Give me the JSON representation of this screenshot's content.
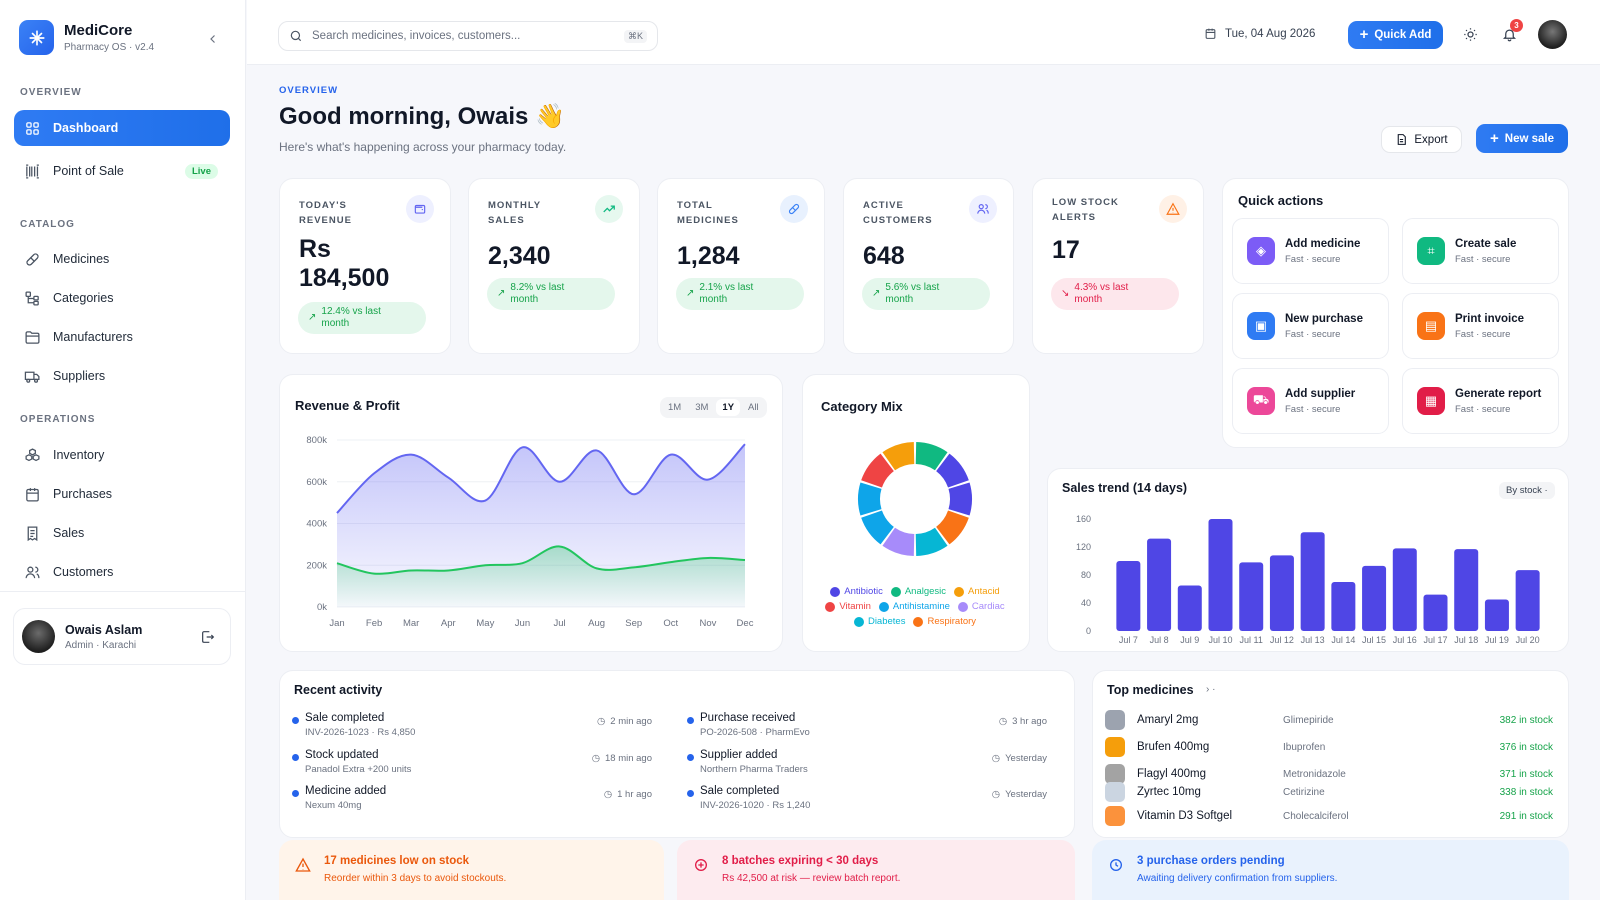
{
  "app": {
    "name": "MediCore",
    "subtitle": "Pharmacy OS · v2.4"
  },
  "sidebar": {
    "sections": {
      "overview": "OVERVIEW",
      "catalog": "CATALOG",
      "operations": "OPERATIONS"
    },
    "items": [
      {
        "label": "Dashboard",
        "icon": "grid-icon"
      },
      {
        "label": "Point of Sale",
        "icon": "barcode-icon",
        "badge": "Live"
      },
      {
        "label": "Medicines",
        "icon": "pill-icon"
      },
      {
        "label": "Categories",
        "icon": "tree-icon"
      },
      {
        "label": "Manufacturers",
        "icon": "folder-icon"
      },
      {
        "label": "Suppliers",
        "icon": "truck-icon"
      },
      {
        "label": "Inventory",
        "icon": "boxes-icon"
      },
      {
        "label": "Purchases",
        "icon": "calendar-box-icon"
      },
      {
        "label": "Sales",
        "icon": "receipt-icon"
      },
      {
        "label": "Customers",
        "icon": "users-icon"
      }
    ],
    "user": {
      "name": "Owais Aslam",
      "role": "Admin · Karachi"
    }
  },
  "topbar": {
    "search_placeholder": "Search medicines, invoices, customers...",
    "shortcut": "⌘K",
    "date": "Tue, 04 Aug 2026",
    "quick_add": "Quick Add",
    "notifications": "3"
  },
  "header": {
    "eyebrow": "OVERVIEW",
    "greeting": "Good morning, Owais 👋",
    "subtitle": "Here's what's happening across your pharmacy today.",
    "export": "Export",
    "new_sale": "New sale"
  },
  "stats": [
    {
      "label": "TODAY'S REVENUE",
      "value_line1": "Rs",
      "value_line2": "184,500",
      "change": "12.4% vs last month",
      "trend": "up",
      "icon": "wallet-icon",
      "color": "#6366f1"
    },
    {
      "label": "MONTHLY SALES",
      "value": "2,340",
      "change": "8.2% vs last month",
      "trend": "up",
      "icon": "trend-up-icon",
      "color": "#10b981"
    },
    {
      "label": "TOTAL MEDICINES",
      "value": "1,284",
      "change": "2.1% vs last month",
      "trend": "up",
      "icon": "pill-icon",
      "color": "#3b82f6"
    },
    {
      "label": "ACTIVE CUSTOMERS",
      "value": "648",
      "change": "5.6% vs last month",
      "trend": "up",
      "icon": "users-icon",
      "color": "#6366f1"
    },
    {
      "label": "LOW STOCK ALERTS",
      "value": "17",
      "change": "4.3% vs last month",
      "trend": "down",
      "icon": "warning-icon",
      "color": "#f97316"
    }
  ],
  "quick_actions": {
    "title": "Quick actions",
    "sub": "Fast · secure",
    "items": [
      {
        "label": "Add medicine",
        "color": "#7c5cf6",
        "icon": "pill-icon"
      },
      {
        "label": "Create sale",
        "color": "#10b981",
        "icon": "scan-icon"
      },
      {
        "label": "New purchase",
        "color": "#2f7bf3",
        "icon": "box-icon"
      },
      {
        "label": "Print invoice",
        "color": "#f97316",
        "icon": "document-icon"
      },
      {
        "label": "Add supplier",
        "color": "#ec4899",
        "icon": "truck-icon"
      },
      {
        "label": "Generate report",
        "color": "#e11d48",
        "icon": "chart-icon"
      }
    ]
  },
  "revenue_chart": {
    "title": "Revenue & Profit",
    "ranges": [
      "1M",
      "3M",
      "1Y",
      "All"
    ],
    "active_range": "1Y"
  },
  "category_mix": {
    "title": "Category Mix"
  },
  "sales_trend": {
    "title": "Sales trend (14 days)",
    "filter": "By stock ·"
  },
  "chart_data": [
    {
      "type": "area",
      "title": "Revenue & Profit",
      "categories": [
        "Jan",
        "Feb",
        "Mar",
        "Apr",
        "May",
        "Jun",
        "Jul",
        "Aug",
        "Sep",
        "Oct",
        "Nov",
        "Dec"
      ],
      "ylim": [
        0,
        800000
      ],
      "yticks": [
        "800k",
        "600k",
        "400k",
        "200k",
        "0k"
      ],
      "series": [
        {
          "values": [
            450000,
            640000,
            730000,
            620000,
            510000,
            765000,
            600000,
            750000,
            540000,
            730000,
            610000,
            780000
          ],
          "color": "#6366f1"
        },
        {
          "values": [
            210000,
            160000,
            175000,
            175000,
            200000,
            210000,
            290000,
            185000,
            190000,
            215000,
            235000,
            225000
          ],
          "color": "#22c55e"
        }
      ]
    },
    {
      "type": "pie",
      "title": "Category Mix",
      "categories": [
        "Antibiotic",
        "Analgesic",
        "Antacid",
        "Vitamin",
        "Antihistamine",
        "Cardiac",
        "Diabetes",
        "Respiratory"
      ],
      "values": [
        16,
        10,
        14,
        13,
        14,
        12,
        11,
        10
      ],
      "colors": [
        "#4f46e5",
        "#10b981",
        "#f59e0b",
        "#ef4444",
        "#0ea5e9",
        "#a78bfa",
        "#06b6d4",
        "#f97316"
      ],
      "segment_colors": [
        "#10b981",
        "#4f46e5",
        "#4f46e5",
        "#f97316",
        "#06b6d4",
        "#a78bfa",
        "#0ea5e9",
        "#0ea5e9",
        "#ef4444",
        "#f59e0b"
      ]
    },
    {
      "type": "bar",
      "title": "Sales trend (14 days)",
      "categories": [
        "Jul 7",
        "Jul 8",
        "Jul 9",
        "Jul 10",
        "Jul 11",
        "Jul 12",
        "Jul 13",
        "Jul 14",
        "Jul 15",
        "Jul 16",
        "Jul 17",
        "Jul 18",
        "Jul 19",
        "Jul 20"
      ],
      "values": [
        100,
        132,
        65,
        160,
        98,
        108,
        141,
        70,
        93,
        118,
        52,
        117,
        45,
        87
      ],
      "ylim": [
        0,
        160
      ],
      "yticks": [
        0,
        40,
        80,
        120,
        160
      ],
      "color": "#4f46e5"
    }
  ],
  "activity": {
    "title": "Recent activity",
    "items": [
      {
        "title": "Sale completed",
        "sub": "INV-2026-1023 · Rs 4,850",
        "time": "2 min ago"
      },
      {
        "title": "Stock updated",
        "sub": "Panadol Extra +200 units",
        "time": "18 min ago"
      },
      {
        "title": "Medicine added",
        "sub": "Nexum 40mg",
        "time": "1 hr ago"
      },
      {
        "title": "Purchase received",
        "sub": "PO-2026-508 · PharmEvo",
        "time": "3 hr ago"
      },
      {
        "title": "Supplier added",
        "sub": "Northern Pharma Traders",
        "time": "Yesterday"
      },
      {
        "title": "Sale completed",
        "sub": "INV-2026-1020 · Rs 1,240",
        "time": "Yesterday"
      }
    ]
  },
  "top_medicines": {
    "title": "Top medicines",
    "items": [
      {
        "name": "Amaryl 2mg",
        "generic": "Glimepiride",
        "stock": "382 in stock",
        "thumb": "#9ca3af"
      },
      {
        "name": "Brufen 400mg",
        "generic": "Ibuprofen",
        "stock": "376 in stock",
        "thumb": "#f59e0b"
      },
      {
        "name": "Flagyl 400mg",
        "generic": "Metronidazole",
        "stock": "371 in stock",
        "thumb": "#a3a3a3"
      },
      {
        "name": "Zyrtec 10mg",
        "generic": "Cetirizine",
        "stock": "338 in stock",
        "thumb": "#cbd5e1"
      },
      {
        "name": "Vitamin D3 Softgel",
        "generic": "Cholecalciferol",
        "stock": "291 in stock",
        "thumb": "#fb923c"
      }
    ]
  },
  "alerts": [
    {
      "title": "17 medicines low on stock",
      "sub": "Reorder within 3 days to avoid stockouts.",
      "color": "#ea580c",
      "bg": "#fff4ea"
    },
    {
      "title": "8 batches expiring < 30 days",
      "sub": "Rs 42,500 at risk — review batch report.",
      "color": "#e11d48",
      "bg": "#fdebef"
    },
    {
      "title": "3 purchase orders pending",
      "sub": "Awaiting delivery confirmation from suppliers.",
      "color": "#2563eb",
      "bg": "#e9f2fd"
    }
  ]
}
